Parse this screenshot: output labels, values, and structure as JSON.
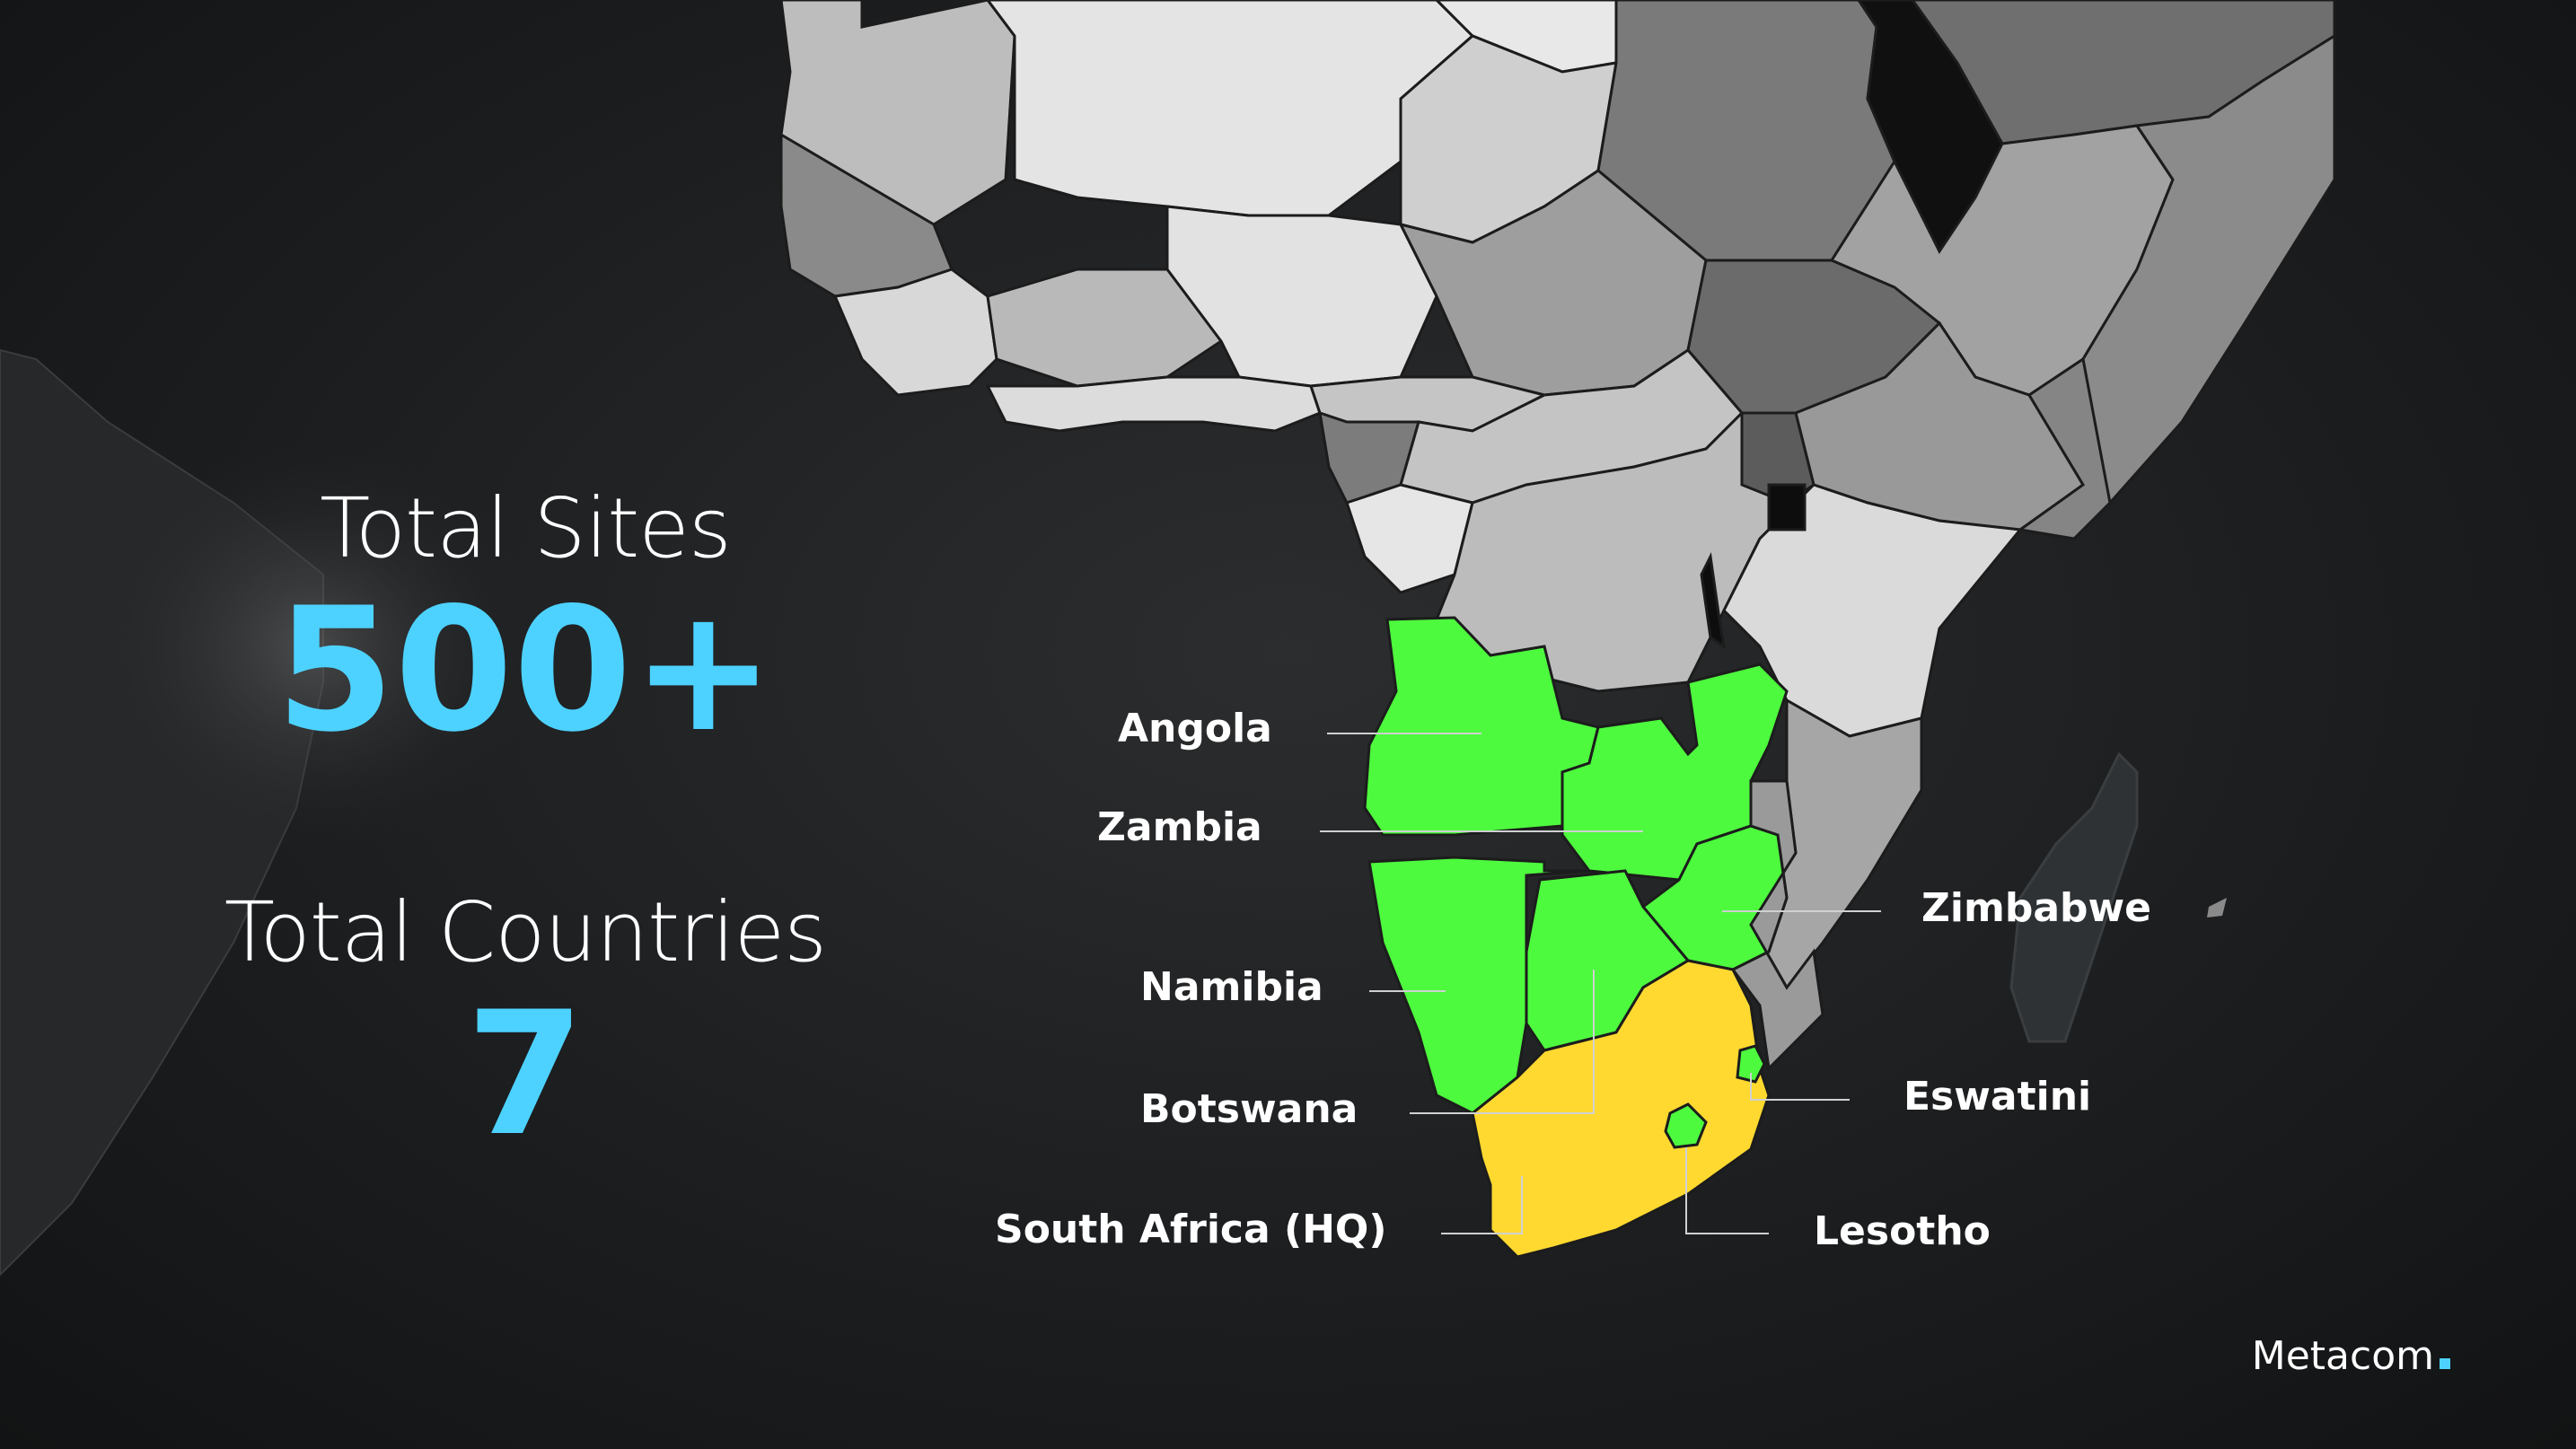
{
  "stats": {
    "total_sites_label": "Total Sites",
    "total_sites_value": "500+",
    "total_countries_label": "Total Countries",
    "total_countries_value": "7"
  },
  "map": {
    "countries": [
      {
        "name": "Angola",
        "status": "operating"
      },
      {
        "name": "Zambia",
        "status": "operating"
      },
      {
        "name": "Zimbabwe",
        "status": "operating"
      },
      {
        "name": "Namibia",
        "status": "operating"
      },
      {
        "name": "Eswatini",
        "status": "operating"
      },
      {
        "name": "Botswana",
        "status": "operating"
      },
      {
        "name": "Lesotho",
        "status": "operating"
      },
      {
        "name": "South Africa (HQ)",
        "status": "headquarters"
      }
    ]
  },
  "brand": {
    "name": "Metacom"
  },
  "colors": {
    "accent_blue": "#4dd2ff",
    "operating_green": "#4dfa3e",
    "hq_yellow": "#ffd930",
    "background": "#1c1e20",
    "land_gray": "#9a9a9a"
  }
}
